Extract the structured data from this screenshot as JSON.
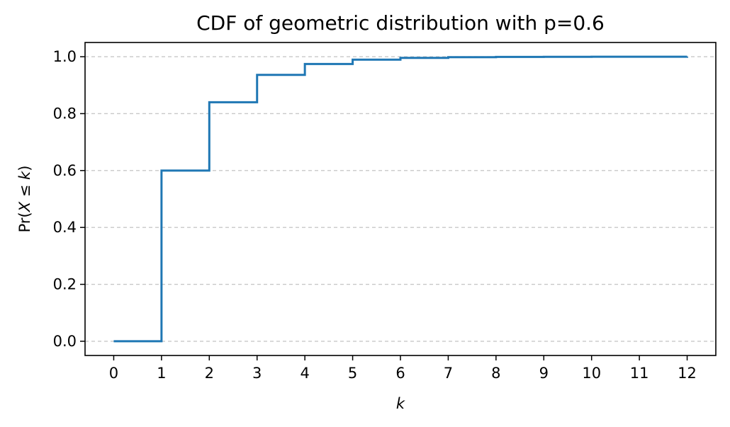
{
  "chart_data": {
    "type": "line",
    "drawstyle": "steps-post",
    "title": "CDF of geometric distribution with p=0.6",
    "xlabel": "k",
    "ylabel_parts": [
      "Pr(",
      "X",
      " ≤ ",
      "k",
      ")"
    ],
    "x": [
      0,
      1,
      2,
      3,
      4,
      5,
      6,
      7,
      8,
      9,
      10,
      11,
      12
    ],
    "series": [
      {
        "color": "#1f77b4",
        "values": [
          0.0,
          0.6,
          0.84,
          0.936,
          0.9744,
          0.98976,
          0.995904,
          0.9983616,
          0.99934464,
          0.999737856,
          0.9998951424,
          0.99995805696,
          0.999983222784
        ]
      }
    ],
    "xlim": [
      -0.6,
      12.6
    ],
    "ylim": [
      -0.05,
      1.05
    ],
    "xticks": [
      0,
      1,
      2,
      3,
      4,
      5,
      6,
      7,
      8,
      9,
      10,
      11,
      12
    ],
    "xtick_labels": [
      "0",
      "1",
      "2",
      "3",
      "4",
      "5",
      "6",
      "7",
      "8",
      "9",
      "10",
      "11",
      "12"
    ],
    "yticks": [
      0.0,
      0.2,
      0.4,
      0.6,
      0.8,
      1.0
    ],
    "ytick_labels": [
      "0.0",
      "0.2",
      "0.4",
      "0.6",
      "0.8",
      "1.0"
    ],
    "grid": {
      "axis": "y",
      "style": "dashed",
      "color": "#c8c8c8"
    }
  }
}
